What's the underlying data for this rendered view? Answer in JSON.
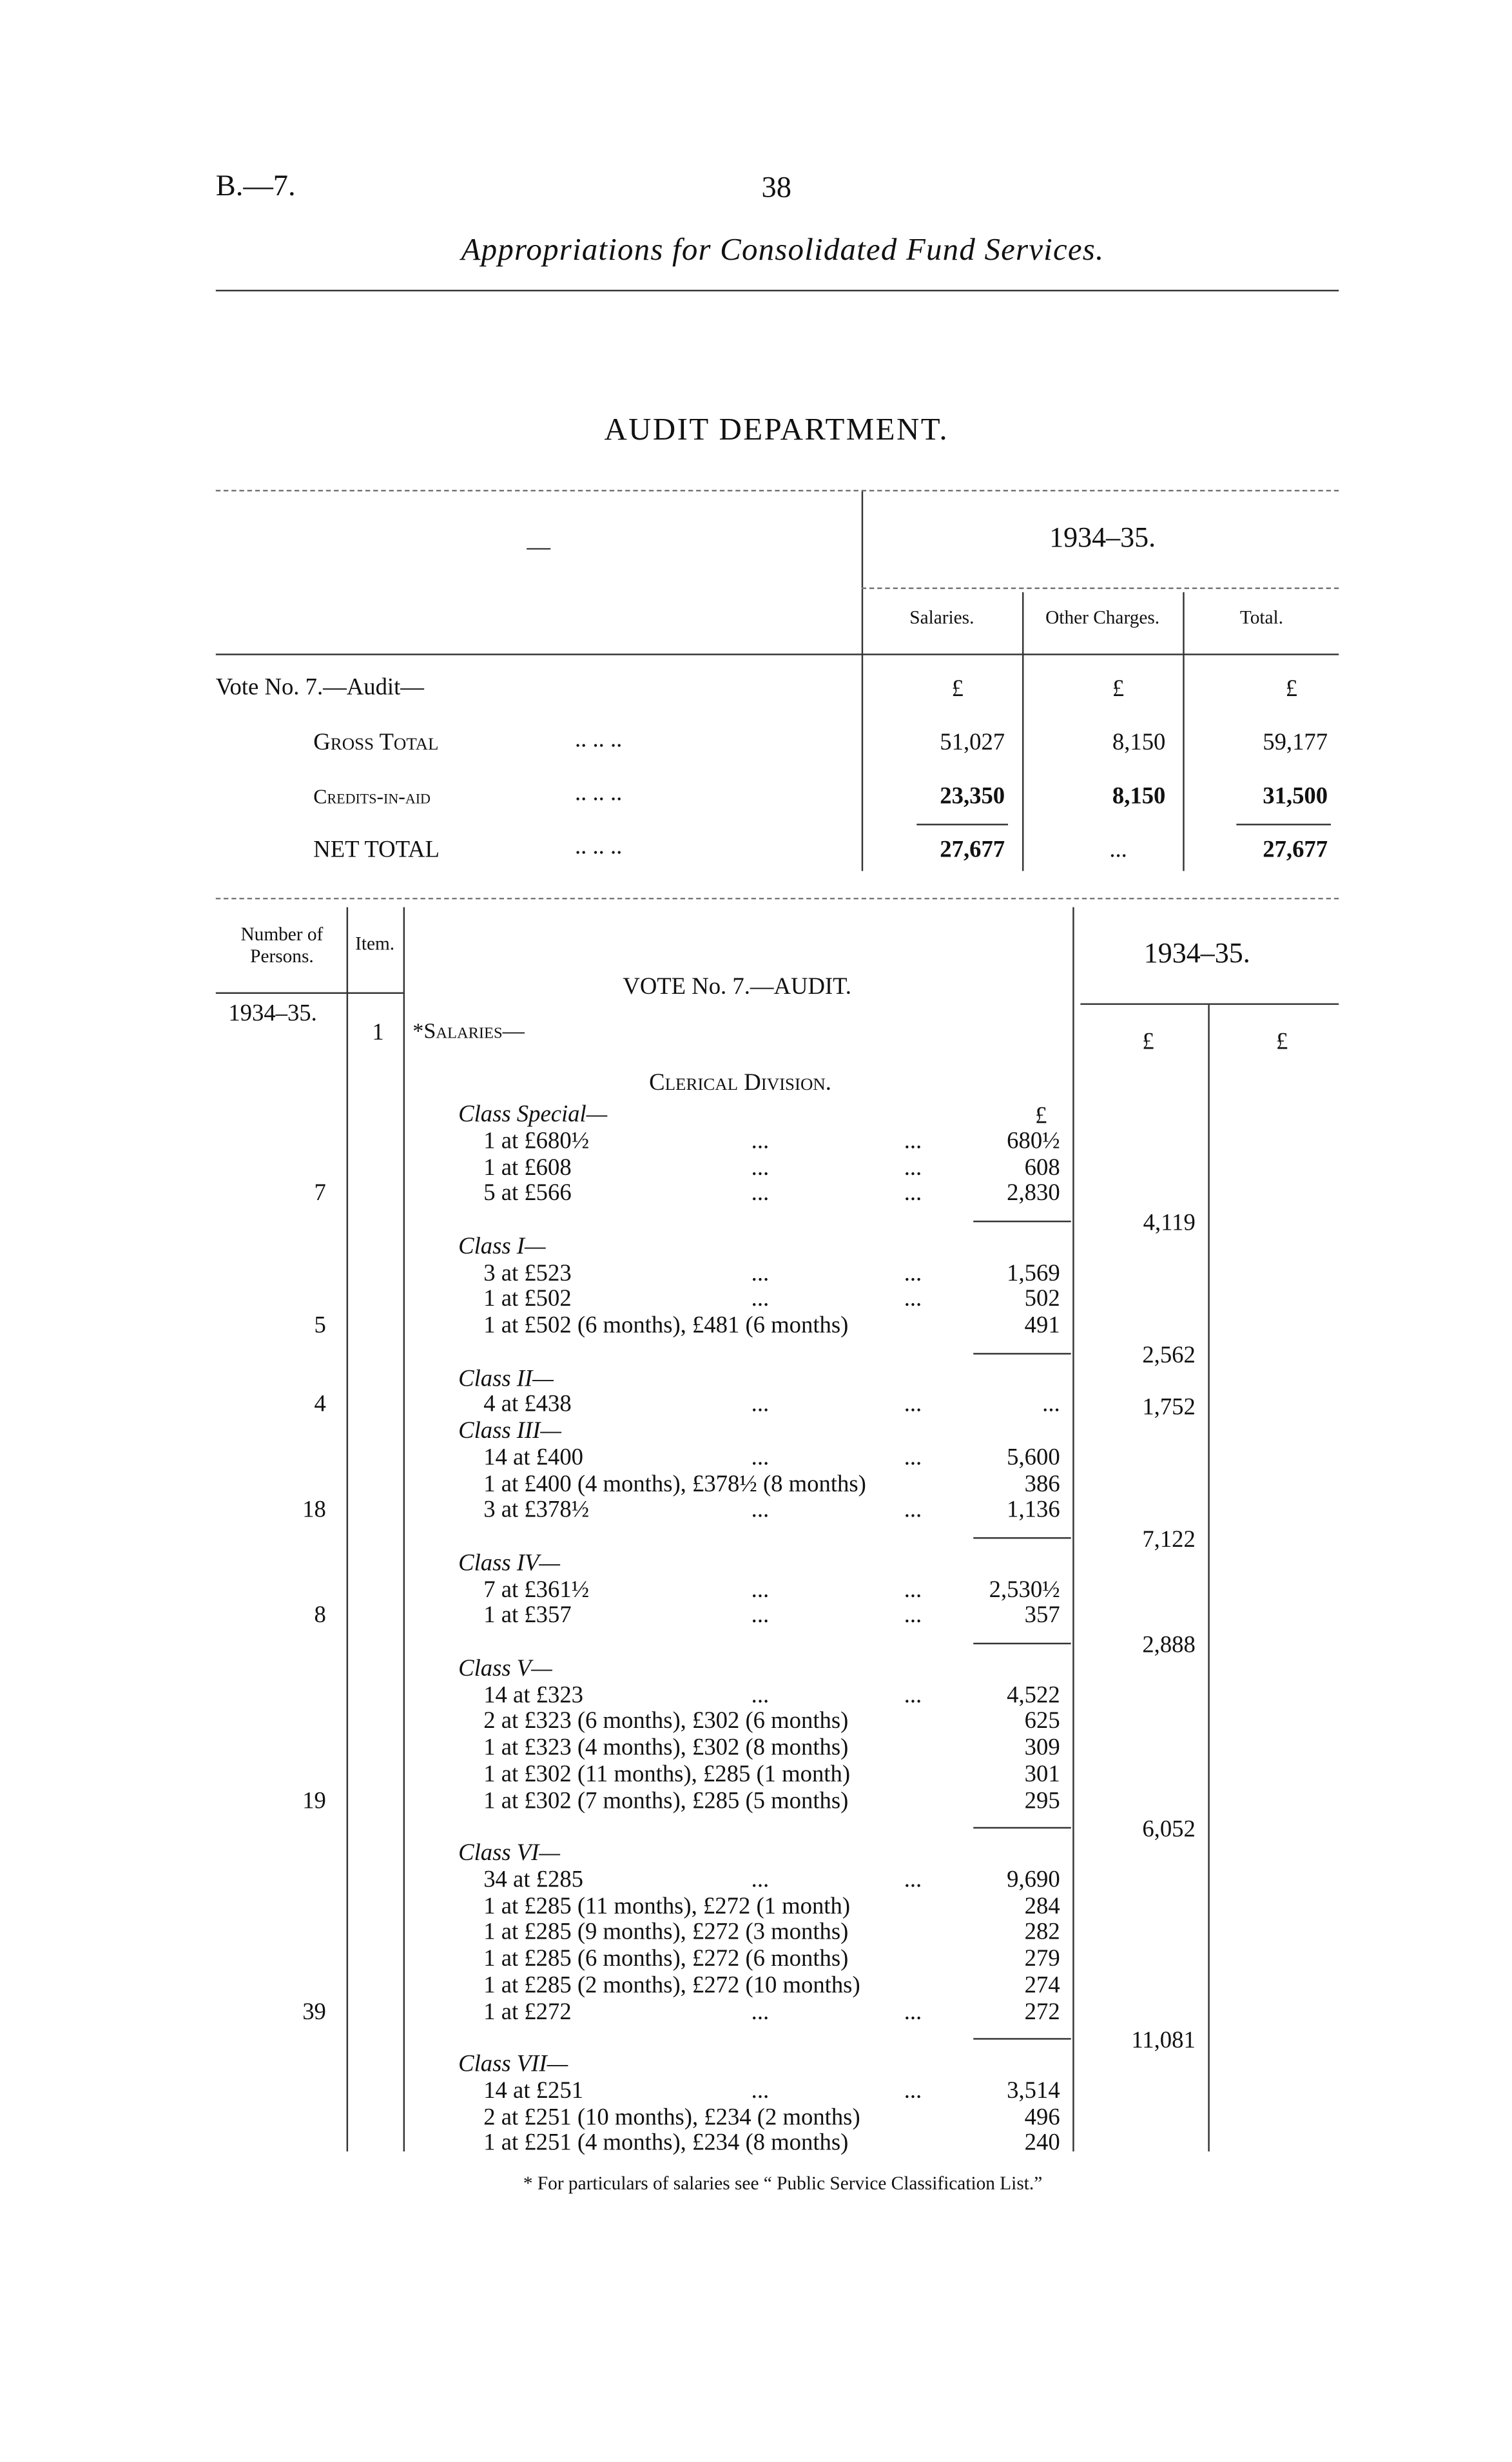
{
  "header": {
    "ref": "B.—7.",
    "page_number": "38",
    "title": "Appropriations for Consolidated Fund Services."
  },
  "department": "AUDIT DEPARTMENT.",
  "summary": {
    "dash": "—",
    "year": "1934–35.",
    "columns": [
      "Salaries.",
      "Other Charges.",
      "Total."
    ],
    "vote_label": "Vote No. 7.—Audit—",
    "currency": [
      "£",
      "£",
      "£"
    ],
    "leader": "..          ..          ..",
    "rows": [
      {
        "label": "Gross Total",
        "values": [
          "51,027",
          "8,150",
          "59,177"
        ]
      },
      {
        "label": "Credits-in-aid",
        "values": [
          "23,350",
          "8,150",
          "31,500"
        ]
      },
      {
        "label": "NET TOTAL",
        "values": [
          "27,677",
          "...",
          "27,677"
        ]
      }
    ]
  },
  "detail": {
    "col_persons": "Number of Persons.",
    "col_item": "Item.",
    "vote_title": "VOTE No. 7.—AUDIT.",
    "year_left": "1934–35.",
    "year_right": "1934–35.",
    "item_number": "1",
    "salaries_label": "*Salaries—",
    "division": "Clerical Division.",
    "currency_amount": "£",
    "currency_col2": "£",
    "currency_col3": "£",
    "rows": [
      {
        "kind": "class",
        "label": "Class Special—"
      },
      {
        "kind": "item",
        "label": "1 at £680½",
        "dots": true,
        "amount": "680½"
      },
      {
        "kind": "item",
        "label": "1 at £608",
        "dots": true,
        "amount": "608"
      },
      {
        "kind": "item",
        "label": "5 at £566",
        "dots": true,
        "amount": "2,830",
        "count": "7"
      },
      {
        "kind": "rule",
        "subtotal": "4,119"
      },
      {
        "kind": "class",
        "label": "Class I—"
      },
      {
        "kind": "item",
        "label": "3 at £523",
        "dots": true,
        "amount": "1,569"
      },
      {
        "kind": "item",
        "label": "1 at £502",
        "dots": true,
        "amount": "502"
      },
      {
        "kind": "item",
        "label": "1 at £502 (6 months), £481 (6 months)",
        "amount": "491",
        "count": "5"
      },
      {
        "kind": "rule",
        "subtotal": "2,562"
      },
      {
        "kind": "class",
        "label": "Class II—"
      },
      {
        "kind": "item",
        "label": "4 at £438",
        "dots": true,
        "amount": "...",
        "count": "4",
        "subtotal": "1,752"
      },
      {
        "kind": "class",
        "label": "Class III—"
      },
      {
        "kind": "item",
        "label": "14 at £400",
        "dots": true,
        "amount": "5,600"
      },
      {
        "kind": "item",
        "label": "1 at £400 (4 months), £378½ (8 months)",
        "amount": "386"
      },
      {
        "kind": "item",
        "label": "3 at £378½",
        "dots": true,
        "amount": "1,136",
        "count": "18"
      },
      {
        "kind": "rule",
        "subtotal": "7,122"
      },
      {
        "kind": "class",
        "label": "Class IV—"
      },
      {
        "kind": "item",
        "label": "7 at £361½",
        "dots": true,
        "amount": "2,530½"
      },
      {
        "kind": "item",
        "label": "1 at £357",
        "dots": true,
        "amount": "357",
        "count": "8"
      },
      {
        "kind": "rule",
        "subtotal": "2,888"
      },
      {
        "kind": "class",
        "label": "Class V—"
      },
      {
        "kind": "item",
        "label": "14 at £323",
        "dots": true,
        "amount": "4,522"
      },
      {
        "kind": "item",
        "label": "2 at £323 (6 months), £302 (6 months)",
        "amount": "625"
      },
      {
        "kind": "item",
        "label": "1 at £323 (4 months), £302 (8 months)",
        "amount": "309"
      },
      {
        "kind": "item",
        "label": "1 at £302 (11 months), £285 (1 month)",
        "amount": "301"
      },
      {
        "kind": "item",
        "label": "1 at £302 (7 months), £285 (5 months)",
        "amount": "295",
        "count": "19"
      },
      {
        "kind": "rule",
        "subtotal": "6,052"
      },
      {
        "kind": "class",
        "label": "Class VI—"
      },
      {
        "kind": "item",
        "label": "34 at £285",
        "dots": true,
        "amount": "9,690"
      },
      {
        "kind": "item",
        "label": "1 at £285 (11 months), £272 (1 month)",
        "amount": "284"
      },
      {
        "kind": "item",
        "label": "1 at £285 (9 months), £272 (3 months)",
        "amount": "282"
      },
      {
        "kind": "item",
        "label": "1 at £285 (6 months), £272 (6 months)",
        "amount": "279"
      },
      {
        "kind": "item",
        "label": "1 at £285 (2 months), £272 (10 months)",
        "amount": "274"
      },
      {
        "kind": "item",
        "label": "1 at £272",
        "dots": true,
        "amount": "272",
        "count": "39"
      },
      {
        "kind": "rule",
        "subtotal": "11,081"
      },
      {
        "kind": "class",
        "label": "Class VII—"
      },
      {
        "kind": "item",
        "label": "14 at £251",
        "dots": true,
        "amount": "3,514"
      },
      {
        "kind": "item",
        "label": "2 at £251 (10 months), £234 (2 months)",
        "amount": "496"
      },
      {
        "kind": "item",
        "label": "1 at £251 (4 months), £234 (8 months)",
        "amount": "240"
      }
    ],
    "dots_text": "..."
  },
  "footnote": "* For particulars of salaries see “ Public Service Classification List.”"
}
